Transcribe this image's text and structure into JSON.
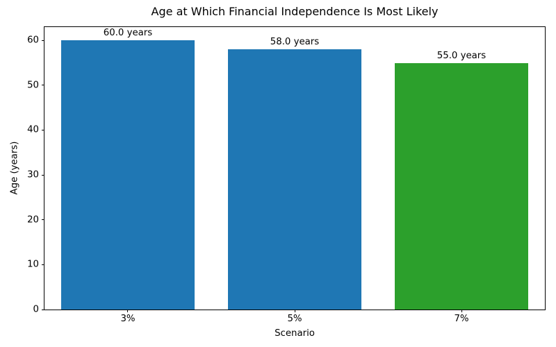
{
  "chart_data": {
    "type": "bar",
    "title": "Age at Which Financial Independence Is Most Likely",
    "xlabel": "Scenario",
    "ylabel": "Age (years)",
    "categories": [
      "3%",
      "5%",
      "7%"
    ],
    "values": [
      60.0,
      58.0,
      55.0
    ],
    "value_labels": [
      "60.0 years",
      "58.0 years",
      "55.0 years"
    ],
    "bar_colors": [
      "#1f77b4",
      "#1f77b4",
      "#2ca02c"
    ],
    "bar_width_fraction": 0.8,
    "ylim": [
      0,
      63
    ],
    "yticks": [
      0,
      10,
      20,
      30,
      40,
      50,
      60
    ],
    "grid": false,
    "legend_position": "none",
    "axis_color": "#000000",
    "background_color": "#ffffff"
  }
}
